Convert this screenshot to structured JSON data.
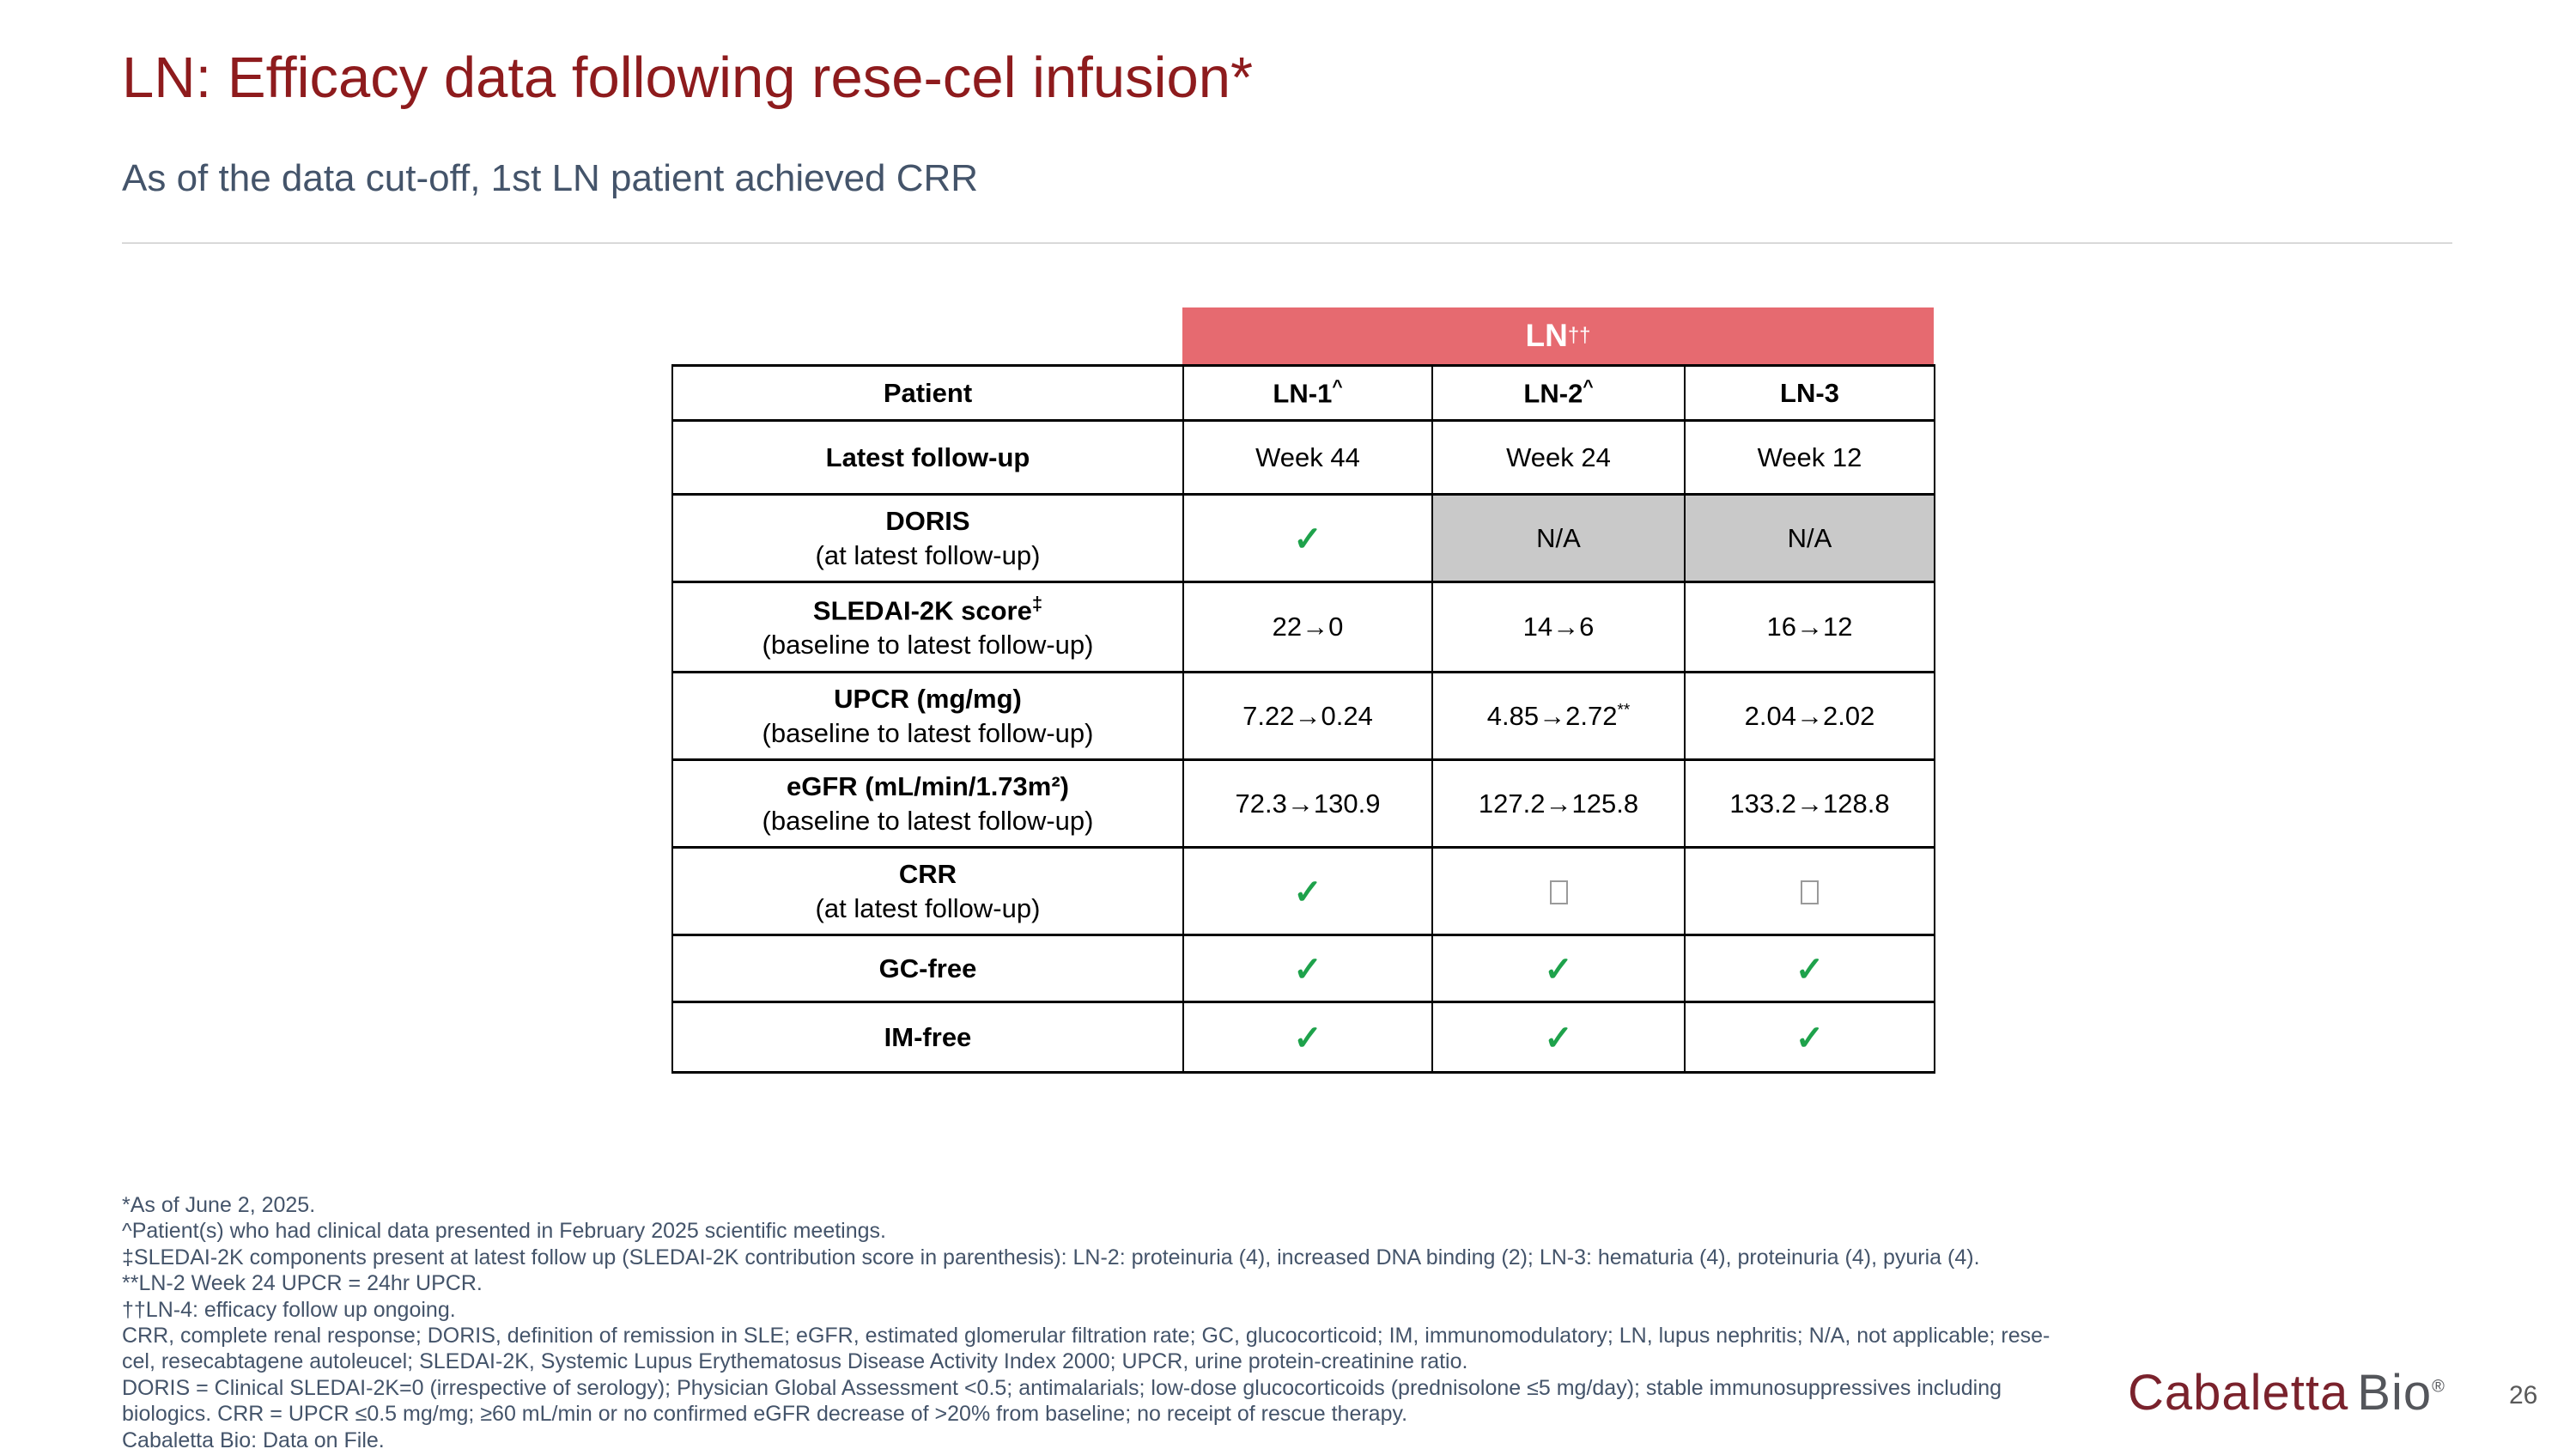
{
  "slide": {
    "title": "LN: Efficacy data following rese-cel infusion*",
    "subtitle": "As of the data cut-off, 1st LN patient achieved CRR",
    "page_number": "26",
    "logo": {
      "part1": "Cabaletta",
      "part2": "Bio",
      "registered": "®"
    }
  },
  "colors": {
    "title_red": "#8e1b1d",
    "banner_red": "#e66a70",
    "na_gray": "#c9c9c9",
    "check_green": "#1ea24b",
    "footnote_slate": "#44546a"
  },
  "table": {
    "banner": {
      "text": "LN",
      "sup": "††"
    },
    "check_symbol": "✓",
    "header": {
      "row_label": "Patient",
      "columns": [
        {
          "text": "LN-1",
          "sup": "^"
        },
        {
          "text": "LN-2",
          "sup": "^"
        },
        {
          "text": "LN-3",
          "sup": ""
        }
      ]
    },
    "rows": [
      {
        "label": "Latest follow-up",
        "sup": "",
        "sublabel": "",
        "cells": [
          {
            "type": "text",
            "text": "Week 44"
          },
          {
            "type": "text",
            "text": "Week 24"
          },
          {
            "type": "text",
            "text": "Week 12"
          }
        ]
      },
      {
        "label": "DORIS",
        "sup": "",
        "sublabel": "(at latest follow-up)",
        "cells": [
          {
            "type": "check"
          },
          {
            "type": "na",
            "text": "N/A"
          },
          {
            "type": "na",
            "text": "N/A"
          }
        ]
      },
      {
        "label": "SLEDAI-2K score",
        "sup": "‡",
        "sublabel": "(baseline to latest follow-up)",
        "cells": [
          {
            "type": "text",
            "text": "22→0"
          },
          {
            "type": "text",
            "text": "14→6"
          },
          {
            "type": "text",
            "text": "16→12"
          }
        ]
      },
      {
        "label": "UPCR (mg/mg)",
        "sup": "",
        "sublabel": "(baseline to latest follow-up)",
        "cells": [
          {
            "type": "text",
            "text": "7.22→0.24"
          },
          {
            "type": "text",
            "text": "4.85→2.72",
            "sup": "**"
          },
          {
            "type": "text",
            "text": "2.04→2.02"
          }
        ]
      },
      {
        "label": "eGFR (mL/min/1.73m²)",
        "sup": "",
        "sublabel": "(baseline to latest follow-up)",
        "cells": [
          {
            "type": "text",
            "text": "72.3→130.9"
          },
          {
            "type": "text",
            "text": "127.2→125.8"
          },
          {
            "type": "text",
            "text": "133.2→128.8"
          }
        ]
      },
      {
        "label": "CRR",
        "sup": "",
        "sublabel": "(at latest follow-up)",
        "cells": [
          {
            "type": "check"
          },
          {
            "type": "box"
          },
          {
            "type": "box"
          }
        ]
      },
      {
        "label": "GC-free",
        "sup": "",
        "sublabel": "",
        "cells": [
          {
            "type": "check"
          },
          {
            "type": "check"
          },
          {
            "type": "check"
          }
        ]
      },
      {
        "label": "IM-free",
        "sup": "",
        "sublabel": "",
        "cells": [
          {
            "type": "check"
          },
          {
            "type": "check"
          },
          {
            "type": "check"
          }
        ]
      }
    ]
  },
  "footnotes": [
    "*As of June 2, 2025.",
    "^Patient(s) who had clinical data presented in February 2025 scientific meetings.",
    "‡SLEDAI-2K components present at latest follow up (SLEDAI-2K contribution score in parenthesis): LN-2: proteinuria (4), increased DNA binding (2); LN-3: hematuria (4), proteinuria (4), pyuria (4).",
    "**LN-2 Week 24 UPCR = 24hr UPCR.",
    "††LN-4: efficacy follow up ongoing.",
    "CRR, complete renal response; DORIS, definition of remission in SLE; eGFR, estimated glomerular filtration rate; GC, glucocorticoid; IM, immunomodulatory; LN, lupus nephritis; N/A, not applicable; rese-",
    "cel, resecabtagene autoleucel; SLEDAI-2K, Systemic Lupus Erythematosus Disease Activity Index 2000; UPCR, urine protein-creatinine ratio.",
    "DORIS = Clinical SLEDAI-2K=0 (irrespective of serology); Physician Global Assessment <0.5; antimalarials; low-dose glucocorticoids (prednisolone ≤5 mg/day); stable immunosuppressives including",
    "biologics. CRR = UPCR ≤0.5 mg/mg; ≥60 mL/min or no confirmed eGFR decrease of >20% from baseline; no receipt of rescue therapy.",
    "Cabaletta Bio: Data on File."
  ]
}
